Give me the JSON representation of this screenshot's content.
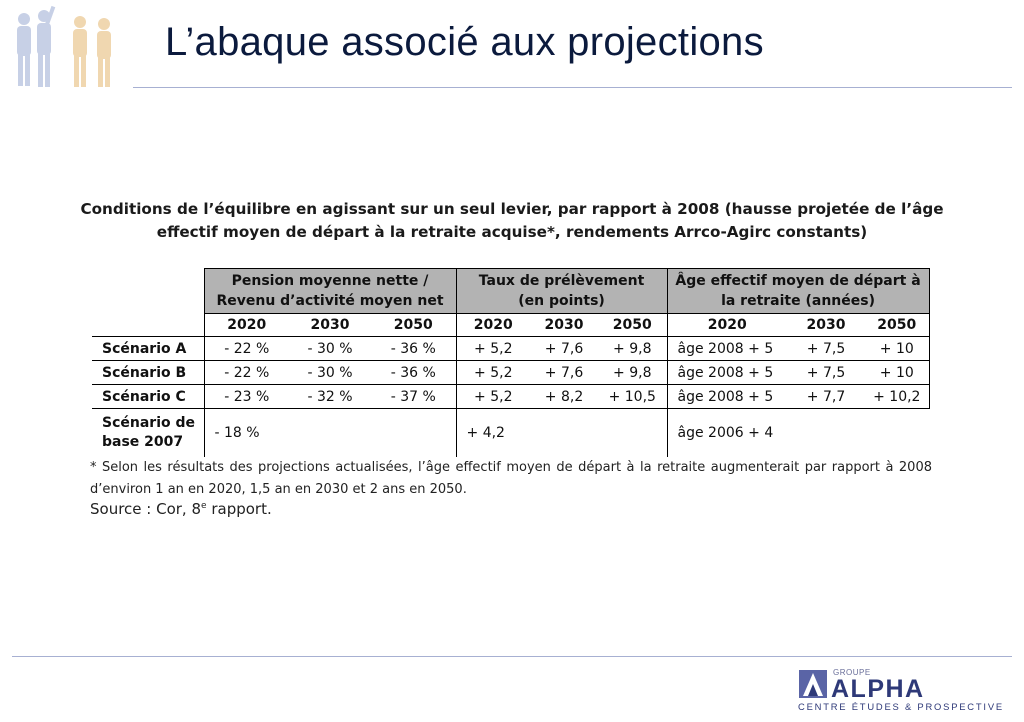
{
  "slide": {
    "title": "L’abaque associé aux projections"
  },
  "caption": {
    "line1": "Conditions de l’équilibre en agissant sur un seul levier, par rapport à 2008 (hausse projetée de l’âge",
    "line2": "effectif moyen de départ à la retraite acquise*, rendements Arrco-Agirc constants)"
  },
  "table": {
    "groups": [
      {
        "line1": "Pension moyenne nette /",
        "line2": "Revenu d’activité moyen net"
      },
      {
        "line1": "Taux de prélèvement",
        "line2": "(en points)"
      },
      {
        "line1": "Âge effectif moyen de départ à",
        "line2": "la retraite (années)"
      }
    ],
    "years": [
      "2020",
      "2030",
      "2050",
      "2020",
      "2030",
      "2050",
      "2020",
      "2030",
      "2050"
    ],
    "rows": [
      {
        "label": "Scénario A",
        "cells": [
          "- 22 %",
          "- 30 %",
          "- 36 %",
          "+ 5,2",
          "+ 7,6",
          "+ 9,8",
          "âge 2008 + 5",
          "+ 7,5",
          "+ 10"
        ]
      },
      {
        "label": "Scénario B",
        "cells": [
          "- 22 %",
          "- 30 %",
          "- 36 %",
          "+ 5,2",
          "+ 7,6",
          "+ 9,8",
          "âge 2008 + 5",
          "+ 7,5",
          "+ 10"
        ]
      },
      {
        "label": "Scénario C",
        "cells": [
          "- 23 %",
          "- 32 %",
          "- 37 %",
          "+ 5,2",
          "+ 8,2",
          "+ 10,5",
          "âge 2008 + 5",
          "+ 7,7",
          "+ 10,2"
        ]
      },
      {
        "label_line1": "Scénario de",
        "label_line2": "base 2007",
        "cells": [
          "- 18 %",
          "",
          "",
          "+ 4,2",
          "",
          "",
          "âge 2006 + 4",
          "",
          ""
        ]
      }
    ]
  },
  "footnote": "* Selon les résultats des projections actualisées, l’âge effectif moyen de départ à la retraite augmenterait par rapport à 2008 d’environ 1 an en 2020, 1,5 an en 2030 et 2 ans en 2050.",
  "source": {
    "prefix": "Source : Cor, 8",
    "sup": "e",
    "suffix": " rapport."
  },
  "logo": {
    "groupe": "GROUPE",
    "name": "ALPHA",
    "subtitle": "CENTRE ÉTUDES & PROSPECTIVE"
  },
  "colors": {
    "title": "#0b1a3d",
    "rule": "#a7b0d2",
    "header_fill": "#b3b3b3",
    "logo_blue": "#2e3978"
  }
}
